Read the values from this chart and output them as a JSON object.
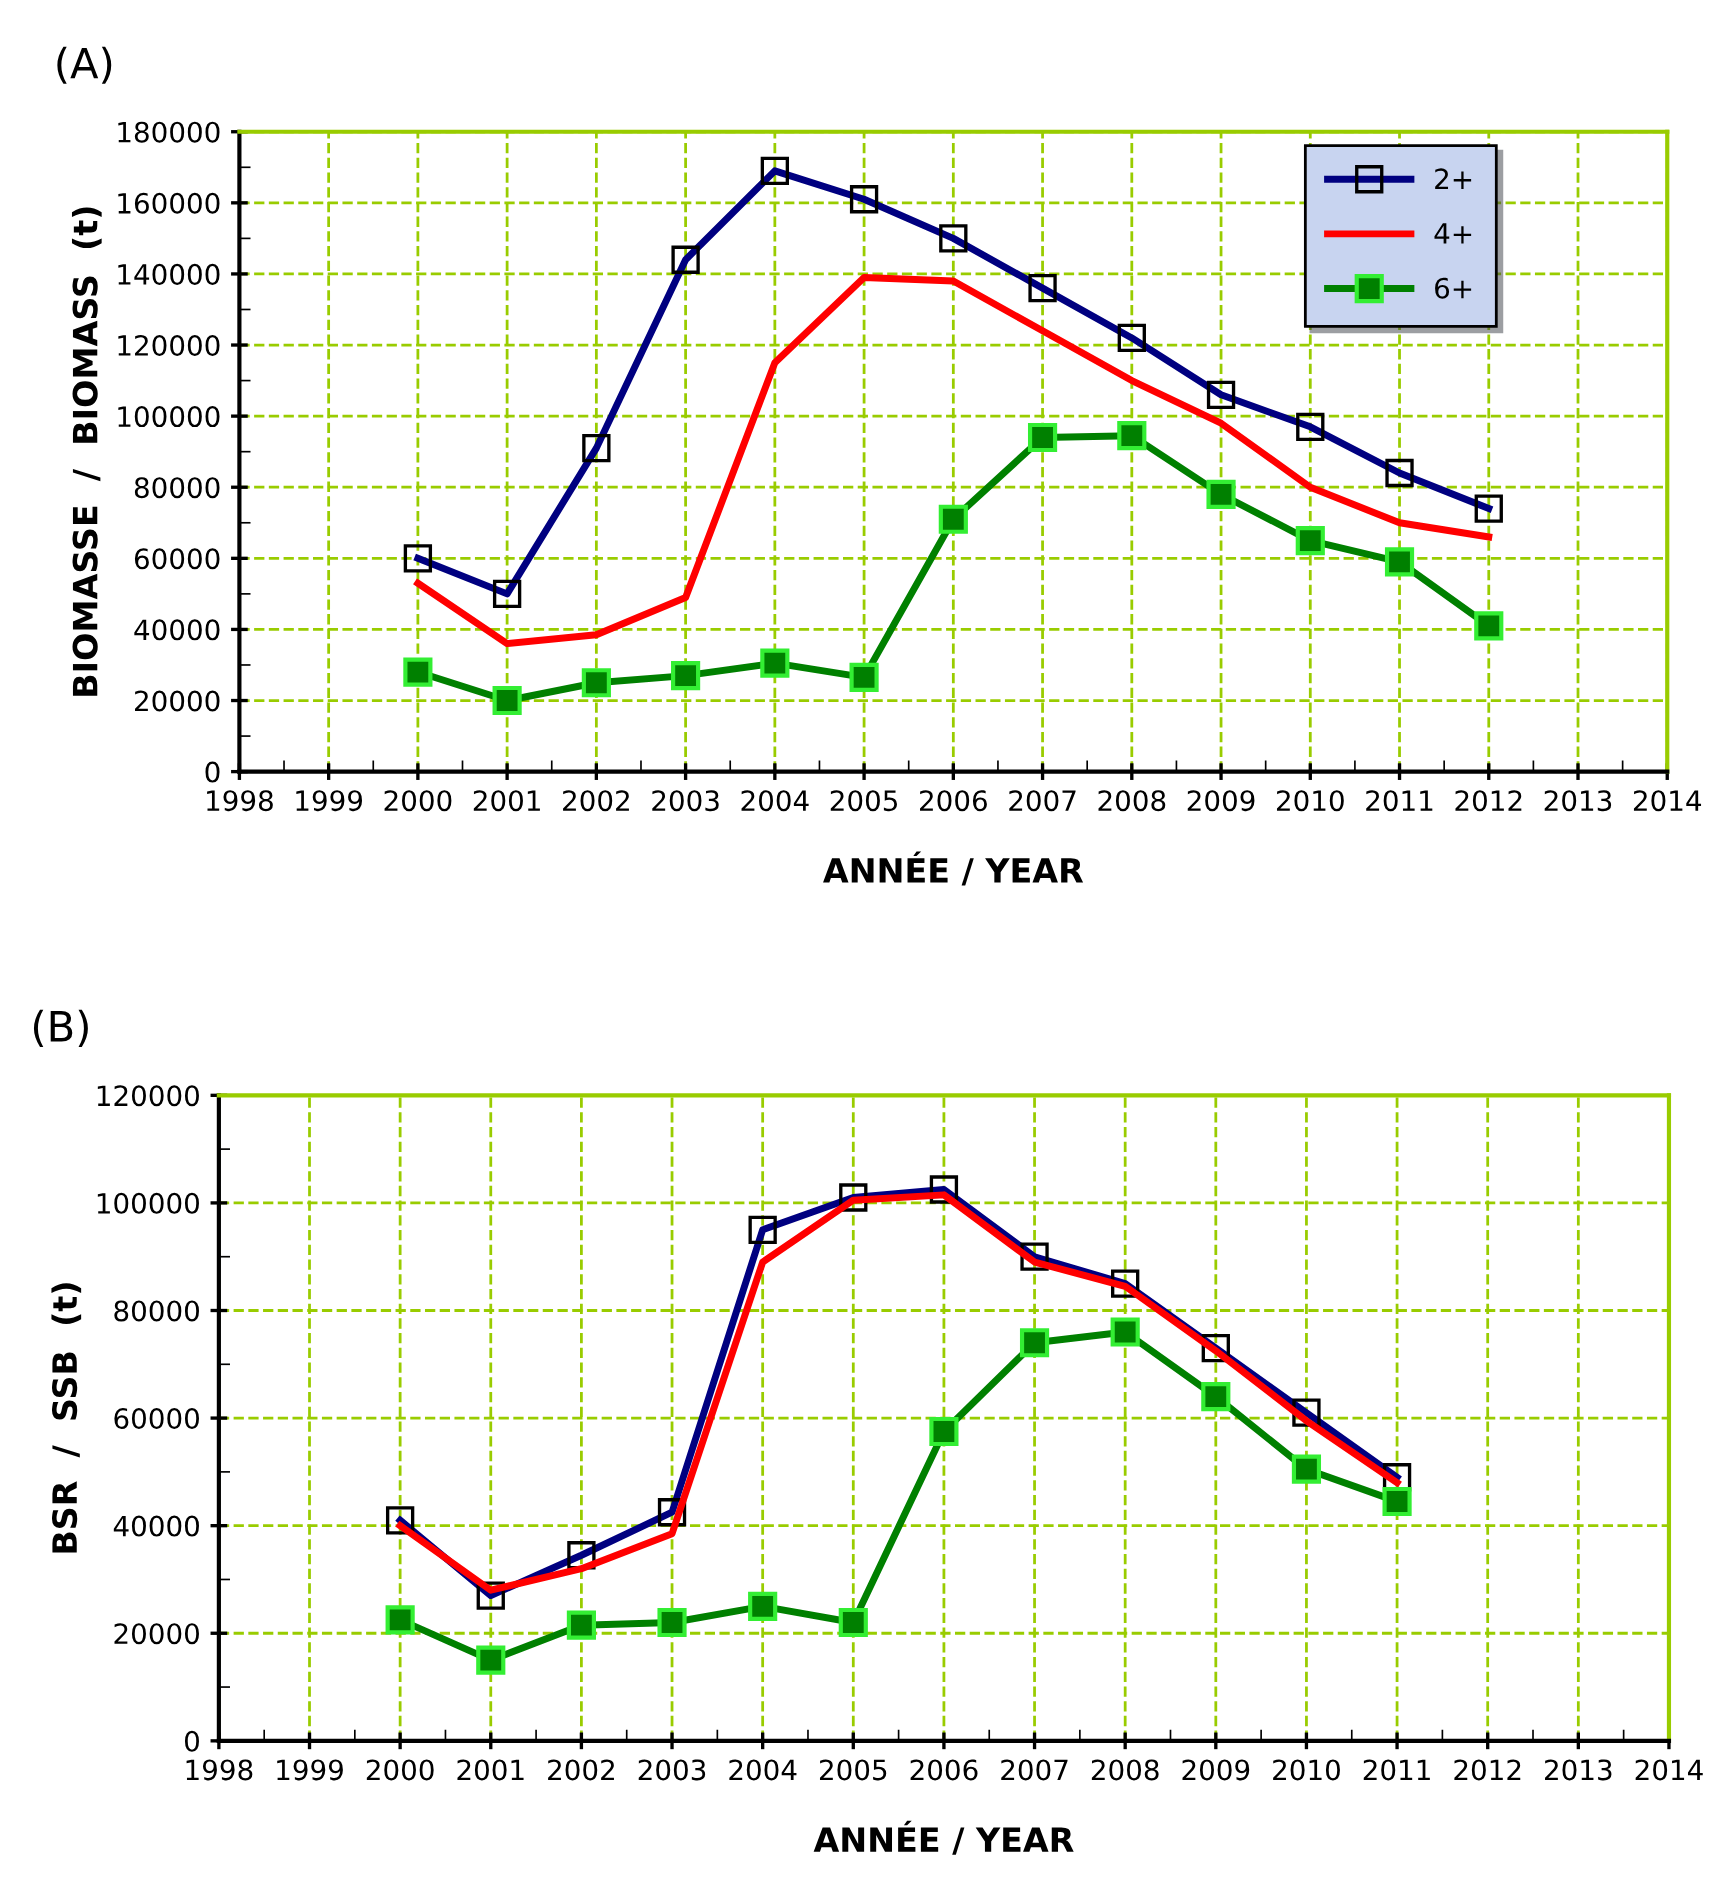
{
  "chart_data": [
    {
      "type": "line",
      "title": "(A)",
      "xlabel": "ANNÉE / YEAR",
      "ylabel": "BIOMASSE  /  BIOMASS  (t)",
      "x": [
        2000,
        2001,
        2002,
        2003,
        2004,
        2005,
        2006,
        2007,
        2008,
        2009,
        2010,
        2011,
        2012
      ],
      "series": [
        {
          "name": "2+",
          "color": "#000080",
          "marker": "square",
          "values": [
            60000,
            50000,
            91000,
            144000,
            169000,
            161000,
            150000,
            136000,
            122000,
            106000,
            97000,
            84000,
            74000
          ]
        },
        {
          "name": "4+",
          "color": "#ff0000",
          "marker": "none",
          "values": [
            53000,
            36000,
            38500,
            49000,
            115000,
            139000,
            138000,
            124000,
            110000,
            98000,
            80000,
            70000,
            66000
          ]
        },
        {
          "name": "6+",
          "color": "#008000",
          "marker": "square",
          "values": [
            28000,
            20000,
            25000,
            27000,
            30500,
            26500,
            71000,
            94000,
            94500,
            78000,
            65000,
            59000,
            41000
          ]
        }
      ],
      "xlim": [
        1998,
        2014
      ],
      "xticks": [
        1998,
        1999,
        2000,
        2001,
        2002,
        2003,
        2004,
        2005,
        2006,
        2007,
        2008,
        2009,
        2010,
        2011,
        2012,
        2013,
        2014
      ],
      "ylim": [
        0,
        180000
      ],
      "yticks": [
        0,
        20000,
        40000,
        60000,
        80000,
        100000,
        120000,
        140000,
        160000,
        180000
      ],
      "grid": true,
      "legend": "top right"
    },
    {
      "type": "line",
      "title": "(B)",
      "xlabel": "ANNÉE / YEAR",
      "ylabel": "BSR  /  SSB  (t)",
      "x": [
        2000,
        2001,
        2002,
        2003,
        2004,
        2005,
        2006,
        2007,
        2008,
        2009,
        2010,
        2011
      ],
      "series": [
        {
          "color": "#000080",
          "marker": "square",
          "values": [
            41000,
            27000,
            34500,
            42500,
            95000,
            101000,
            102500,
            90000,
            85000,
            73000,
            61000,
            49000
          ]
        },
        {
          "color": "#ff0000",
          "marker": "none",
          "values": [
            40000,
            28000,
            32000,
            38500,
            89000,
            100500,
            101500,
            89000,
            84500,
            72500,
            59500,
            48000
          ]
        },
        {
          "color": "#008000",
          "marker": "square",
          "values": [
            22500,
            15000,
            21500,
            22000,
            25000,
            22000,
            57500,
            74000,
            76000,
            64000,
            50500,
            44500
          ]
        }
      ],
      "xlim": [
        1998,
        2014
      ],
      "xticks": [
        1998,
        1999,
        2000,
        2001,
        2002,
        2003,
        2004,
        2005,
        2006,
        2007,
        2008,
        2009,
        2010,
        2011,
        2012,
        2013,
        2014
      ],
      "ylim": [
        0,
        120000
      ],
      "yticks": [
        0,
        20000,
        40000,
        60000,
        80000,
        100000,
        120000
      ],
      "grid": true
    }
  ]
}
